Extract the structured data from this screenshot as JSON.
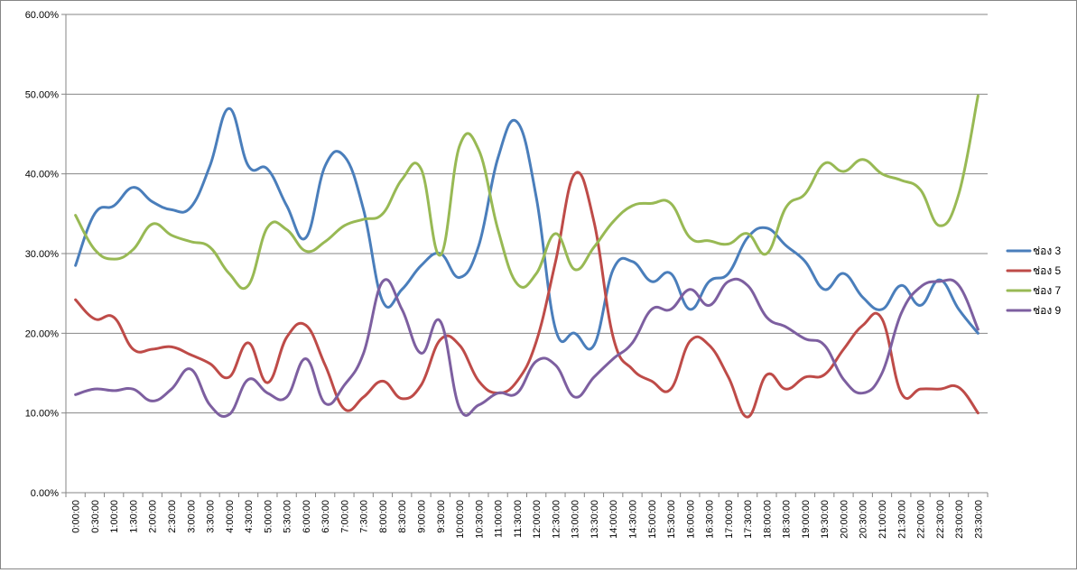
{
  "chart_data": {
    "type": "line",
    "smooth": true,
    "x": [
      "0:00:00",
      "0:30:00",
      "1:00:00",
      "1:30:00",
      "2:00:00",
      "2:30:00",
      "3:00:00",
      "3:30:00",
      "4:00:00",
      "4:30:00",
      "5:00:00",
      "5:30:00",
      "6:00:00",
      "6:30:00",
      "7:00:00",
      "7:30:00",
      "8:00:00",
      "8:30:00",
      "9:00:00",
      "9:30:00",
      "10:00:00",
      "10:30:00",
      "11:00:00",
      "11:30:00",
      "12:00:00",
      "12:30:00",
      "13:00:00",
      "13:30:00",
      "14:00:00",
      "14:30:00",
      "15:00:00",
      "15:30:00",
      "16:00:00",
      "16:30:00",
      "17:00:00",
      "17:30:00",
      "18:00:00",
      "18:30:00",
      "19:00:00",
      "19:30:00",
      "20:00:00",
      "20:30:00",
      "21:00:00",
      "21:30:00",
      "22:00:00",
      "22:30:00",
      "23:00:00",
      "23:30:00"
    ],
    "ylim": [
      0,
      60
    ],
    "yticks": [
      "0.00%",
      "10.00%",
      "20.00%",
      "30.00%",
      "40.00%",
      "50.00%",
      "60.00%"
    ],
    "grid": true,
    "legend_position": "right",
    "series": [
      {
        "name": "ช่อง 3",
        "color": "#4a7ebb",
        "values": [
          28.5,
          35.0,
          36.0,
          38.3,
          36.5,
          35.5,
          35.8,
          41.0,
          48.2,
          41.0,
          40.6,
          36.0,
          32.0,
          41.0,
          42.2,
          35.5,
          24.0,
          25.5,
          28.5,
          30.0,
          27.0,
          31.0,
          42.0,
          46.5,
          37.0,
          20.5,
          20.0,
          18.5,
          28.0,
          29.0,
          26.5,
          27.5,
          23.0,
          26.5,
          27.5,
          32.0,
          33.2,
          31.0,
          29.0,
          25.5,
          27.5,
          24.5,
          23.0,
          26.0,
          23.5,
          26.7,
          23.0,
          20.0
        ]
      },
      {
        "name": "ช่อง 5",
        "color": "#be4b48",
        "values": [
          24.2,
          21.8,
          22.0,
          18.0,
          18.0,
          18.3,
          17.3,
          16.2,
          14.5,
          18.8,
          13.8,
          19.5,
          21.0,
          16.0,
          10.5,
          12.0,
          14.0,
          11.8,
          13.5,
          19.2,
          18.5,
          14.0,
          12.5,
          14.0,
          19.0,
          29.0,
          40.0,
          34.0,
          19.5,
          15.5,
          14.0,
          13.0,
          19.0,
          18.5,
          14.5,
          9.5,
          14.8,
          13.0,
          14.5,
          14.8,
          18.0,
          21.0,
          21.8,
          12.5,
          13.0,
          13.0,
          13.2,
          10.0
        ]
      },
      {
        "name": "ช่อง 7",
        "color": "#98b954",
        "values": [
          34.8,
          30.5,
          29.3,
          30.5,
          33.7,
          32.3,
          31.5,
          30.8,
          27.5,
          26.0,
          33.3,
          33.0,
          30.3,
          31.5,
          33.5,
          34.3,
          35.0,
          39.3,
          40.6,
          29.8,
          43.5,
          43.0,
          33.0,
          26.2,
          27.5,
          32.5,
          28.0,
          30.8,
          34.0,
          36.0,
          36.3,
          36.3,
          32.0,
          31.6,
          31.2,
          32.5,
          30.0,
          35.8,
          37.5,
          41.3,
          40.3,
          41.8,
          40.0,
          39.2,
          38.0,
          33.5,
          37.5,
          49.8
        ]
      },
      {
        "name": "ช่อง 9",
        "color": "#7d5fa0",
        "values": [
          12.3,
          13.0,
          12.8,
          13.0,
          11.5,
          13.0,
          15.5,
          11.0,
          9.8,
          14.2,
          12.5,
          12.0,
          16.8,
          11.2,
          13.5,
          17.5,
          26.5,
          23.0,
          17.5,
          21.5,
          10.6,
          11.0,
          12.5,
          12.5,
          16.5,
          16.0,
          12.0,
          14.5,
          16.8,
          18.8,
          23.0,
          23.0,
          25.5,
          23.5,
          26.5,
          26.0,
          22.0,
          20.8,
          19.3,
          18.5,
          14.2,
          12.5,
          15.0,
          22.5,
          25.8,
          26.5,
          26.0,
          20.5
        ]
      }
    ]
  }
}
